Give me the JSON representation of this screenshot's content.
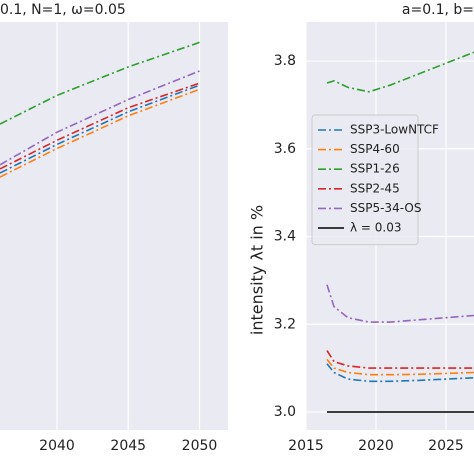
{
  "chart_data": [
    {
      "type": "line",
      "title": "0.1, N=1, ω=0.05",
      "x": [
        2036,
        2040,
        2045,
        2050
      ],
      "xlim": [
        2036,
        2052
      ],
      "xticks": [
        2040,
        2045,
        2050
      ],
      "ylim": [
        0,
        10
      ],
      "grid": true,
      "series": [
        {
          "color": "#2ca02c",
          "style": "dashdot",
          "values": [
            7.5,
            8.2,
            8.9,
            9.5
          ]
        },
        {
          "color": "#9467bd",
          "style": "dashdot",
          "values": [
            6.5,
            7.3,
            8.1,
            8.8
          ]
        },
        {
          "color": "#d62728",
          "style": "dashdot",
          "values": [
            6.4,
            7.1,
            7.9,
            8.5
          ]
        },
        {
          "color": "#1f77b4",
          "style": "dashdot",
          "values": [
            6.3,
            7.0,
            7.8,
            8.45
          ]
        },
        {
          "color": "#ff7f0e",
          "style": "dashdot",
          "values": [
            6.2,
            6.9,
            7.7,
            8.35
          ]
        }
      ]
    },
    {
      "type": "line",
      "title": "a=0.1, b=",
      "y_label": "intensity  λt in %",
      "x": [
        2016.5,
        2017,
        2018,
        2019.5,
        2021,
        2023,
        2025,
        2027
      ],
      "xlim": [
        2015,
        2027
      ],
      "xticks": [
        2015,
        2020,
        2025
      ],
      "ylim": [
        2.959,
        3.889
      ],
      "yticks": [
        {
          "value": 3.0,
          "label": "3.0"
        },
        {
          "value": 3.2,
          "label": "3.2"
        },
        {
          "value": 3.4,
          "label": "3.4"
        },
        {
          "value": 3.6,
          "label": "3.6"
        },
        {
          "value": 3.8,
          "label": "3.8"
        }
      ],
      "grid": true,
      "legend": "left",
      "series": [
        {
          "name": "SSP3-LowNTCF",
          "color": "#1f77b4",
          "style": "dashdot",
          "values": [
            3.11,
            3.09,
            3.075,
            3.07,
            3.07,
            3.072,
            3.075,
            3.078
          ]
        },
        {
          "name": "SSP4-60",
          "color": "#ff7f0e",
          "style": "dashdot",
          "values": [
            3.12,
            3.1,
            3.09,
            3.085,
            3.085,
            3.086,
            3.088,
            3.09
          ]
        },
        {
          "name": "SSP1-26",
          "color": "#2ca02c",
          "style": "dashdot",
          "values": [
            3.75,
            3.755,
            3.74,
            3.73,
            3.745,
            3.77,
            3.795,
            3.82
          ]
        },
        {
          "name": "SSP2-45",
          "color": "#d62728",
          "style": "dashdot",
          "values": [
            3.14,
            3.115,
            3.105,
            3.1,
            3.1,
            3.1,
            3.1,
            3.1
          ]
        },
        {
          "name": "SSP5-34-OS",
          "color": "#9467bd",
          "style": "dashdot",
          "values": [
            3.29,
            3.24,
            3.215,
            3.205,
            3.205,
            3.21,
            3.215,
            3.22
          ]
        },
        {
          "name": "λ = 0.03",
          "color": "#000000",
          "style": "solid",
          "values": [
            3.0,
            3.0,
            3.0,
            3.0,
            3.0,
            3.0,
            3.0,
            3.0
          ]
        }
      ]
    }
  ]
}
